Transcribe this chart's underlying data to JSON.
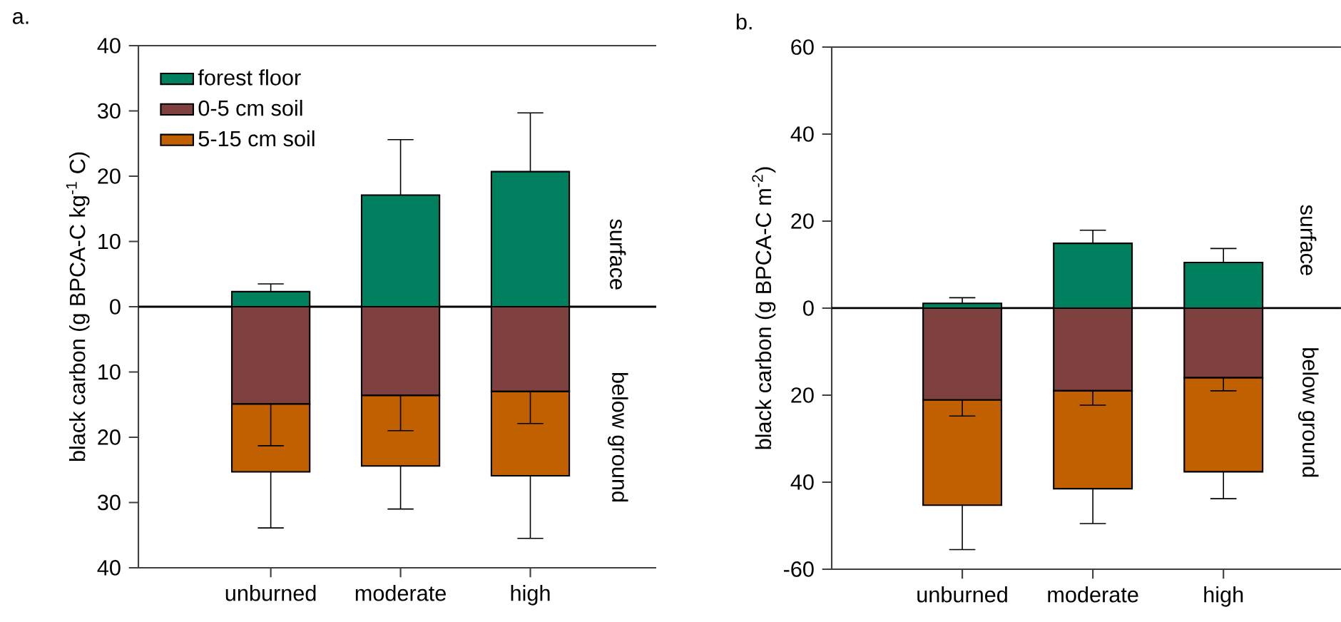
{
  "chart_data": [
    {
      "type": "bar",
      "title": "a.",
      "ylabel": "black carbon (g BPCA-C kg$^{-1}$ C)",
      "categories": [
        "unburned",
        "moderate",
        "high"
      ],
      "stacked": true,
      "legend": "top left",
      "ylim": [
        -40,
        40
      ],
      "yticks": [
        {
          "value": -40,
          "label": "40"
        },
        {
          "value": -30,
          "label": "30"
        },
        {
          "value": -20,
          "label": "20"
        },
        {
          "value": -10,
          "label": "10"
        },
        0,
        10,
        20,
        30,
        40
      ],
      "series": [
        {
          "name": "forest floor",
          "color": "#00805f",
          "values": [
            2.3,
            17.1,
            20.7
          ],
          "errors": [
            [
              2.3,
              3.5
            ],
            [
              17.1,
              25.6
            ],
            [
              20.7,
              29.7
            ]
          ]
        },
        {
          "name": "0-5 cm soil",
          "color": "#7f4040",
          "values": [
            -14.9,
            -13.6,
            -13.0
          ],
          "errors": [
            [
              -21.3,
              -14.9
            ],
            [
              -19.0,
              -13.6
            ],
            [
              -17.9,
              -13.0
            ]
          ]
        },
        {
          "name": "5-15 cm soil",
          "color": "#c06000",
          "values": [
            -10.4,
            -10.8,
            -12.9
          ],
          "errors": [
            [
              -33.9,
              -25.3
            ],
            [
              -31.0,
              -24.4
            ],
            [
              -35.5,
              -25.9
            ]
          ]
        }
      ],
      "annotations": [
        "surface",
        "below ground"
      ]
    },
    {
      "type": "bar",
      "title": "b.",
      "ylabel": "black carbon (g BPCA-C m$^{-2}$)",
      "categories": [
        "unburned",
        "moderate",
        "high"
      ],
      "stacked": true,
      "ylim": [
        -60,
        60
      ],
      "yticks": [
        -60,
        {
          "value": -40,
          "label": "40"
        },
        {
          "value": -20,
          "label": "20"
        },
        0,
        20,
        40,
        60
      ],
      "series": [
        {
          "color": "#00805f",
          "values": [
            1.1,
            14.9,
            10.5
          ],
          "errors": [
            [
              1.1,
              2.4
            ],
            [
              14.9,
              17.9
            ],
            [
              10.5,
              13.7
            ]
          ]
        },
        {
          "color": "#7f4040",
          "values": [
            -21.1,
            -19.0,
            -16.0
          ],
          "errors": [
            [
              -24.8,
              -21.1
            ],
            [
              -22.3,
              -19.0
            ],
            [
              -19.0,
              -16.0
            ]
          ]
        },
        {
          "color": "#c06000",
          "values": [
            -24.2,
            -22.5,
            -21.6
          ],
          "errors": [
            [
              -55.5,
              -45.3
            ],
            [
              -49.5,
              -41.5
            ],
            [
              -43.8,
              -37.6
            ]
          ]
        }
      ],
      "annotations": [
        "surface",
        "below ground"
      ]
    }
  ]
}
